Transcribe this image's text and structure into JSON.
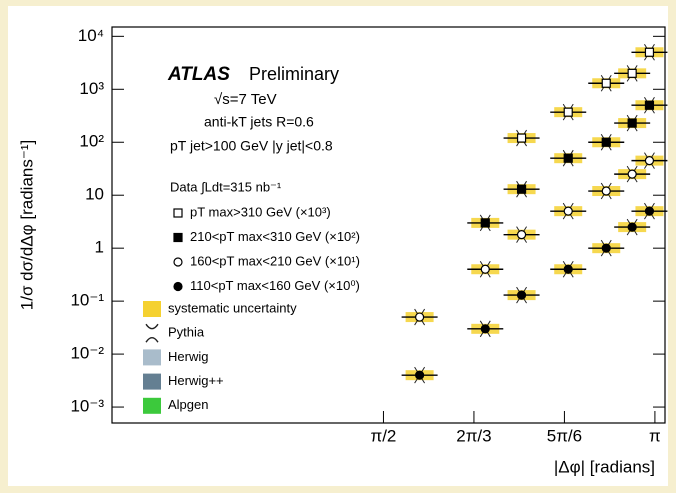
{
  "chart_data": {
    "type": "scatter",
    "title": "ATLAS",
    "subtitle": "Preliminary",
    "annotations": [
      "√s=7 TeV",
      "anti-kT jets R=0.6",
      "pT jet>100 GeV  |y jet|<0.8",
      "Data ∫Ldt=315 nb⁻¹"
    ],
    "xlabel": "|Δφ| [radians]",
    "ylabel": "1/σ dσ/dΔφ [radians⁻¹]",
    "x": [
      1.78,
      2.16,
      2.37,
      2.64,
      2.86,
      3.01,
      3.11
    ],
    "series": [
      {
        "name": "pT max>310 GeV (×10³)",
        "color": "#000000",
        "marker": "open-square",
        "values": [
          null,
          null,
          120,
          370,
          1300,
          2000,
          5000
        ]
      },
      {
        "name": "210<pT max<310 GeV (×10²)",
        "color": "#000000",
        "marker": "square",
        "values": [
          null,
          3,
          13,
          50,
          100,
          230,
          500
        ]
      },
      {
        "name": "160<pT max<210 GeV (×10¹)",
        "color": "#000000",
        "marker": "open-circle",
        "values": [
          0.05,
          0.4,
          1.8,
          5,
          12,
          25,
          45
        ]
      },
      {
        "name": "110<pT max<160 GeV (×10⁰)",
        "color": "#000000",
        "marker": "circle",
        "values": [
          0.004,
          0.03,
          0.13,
          0.4,
          1.0,
          2.5,
          5
        ]
      }
    ],
    "extra_legend": [
      {
        "name": "systematic uncertainty",
        "color": "#f5d130"
      },
      {
        "name": "Pythia",
        "color": "#222222"
      },
      {
        "name": "Herwig",
        "color": "#a9bccb"
      },
      {
        "name": "Herwig++",
        "color": "#647f92"
      },
      {
        "name": "Alpgen",
        "color": "#3cc93c"
      }
    ],
    "xlim": [
      0,
      3.2
    ],
    "xticks": [
      {
        "value": 1.5708,
        "label": "π/2"
      },
      {
        "value": 2.0944,
        "label": "2π/3"
      },
      {
        "value": 2.618,
        "label": "5π/6"
      },
      {
        "value": 3.1416,
        "label": "π"
      }
    ],
    "ylim": [
      0.0005,
      15000
    ],
    "yticks": [
      {
        "value": 0.001,
        "label": "10⁻³"
      },
      {
        "value": 0.01,
        "label": "10⁻²"
      },
      {
        "value": 0.1,
        "label": "10⁻¹"
      },
      1,
      10,
      {
        "value": 100,
        "label": "10²"
      },
      {
        "value": 1000,
        "label": "10³"
      },
      {
        "value": 10000,
        "label": "10⁴"
      }
    ],
    "log_y": true
  }
}
